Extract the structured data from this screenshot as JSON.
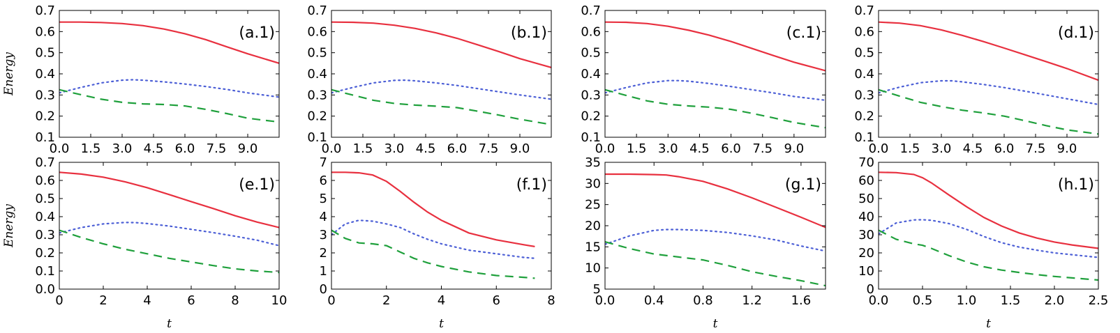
{
  "chart_data": {
    "type": "line",
    "ylabel": "Energy",
    "xlabel": "t",
    "colors": {
      "solid": "#e8303f",
      "dotted": "#4c5fd6",
      "dashed": "#1fa03c"
    },
    "series_styles": [
      {
        "name": "solid",
        "style": "solid"
      },
      {
        "name": "dotted",
        "style": "dotted"
      },
      {
        "name": "dashed",
        "style": "dashed"
      }
    ],
    "panels": [
      {
        "label": "(a.1)",
        "xlim": [
          0,
          10.5
        ],
        "ylim": [
          0.1,
          0.7
        ],
        "xticks": [
          "0.0",
          "1.5",
          "3.0",
          "4.5",
          "6.0",
          "7.5",
          "9.0"
        ],
        "yticks": [
          "0.1",
          "0.2",
          "0.3",
          "0.4",
          "0.5",
          "0.6",
          "0.7"
        ],
        "show_xlabel": false,
        "show_ylabel": true,
        "series": [
          {
            "name": "solid",
            "x": [
              0,
              1,
              2,
              3,
              4,
              5,
              6,
              7,
              8,
              9,
              10.5
            ],
            "values": [
              0.645,
              0.645,
              0.643,
              0.638,
              0.628,
              0.612,
              0.59,
              0.562,
              0.528,
              0.495,
              0.45
            ]
          },
          {
            "name": "dotted",
            "x": [
              0,
              1,
              2,
              3,
              3.5,
              4,
              5,
              6,
              7,
              8,
              9,
              10.5
            ],
            "values": [
              0.31,
              0.335,
              0.357,
              0.37,
              0.372,
              0.37,
              0.362,
              0.352,
              0.34,
              0.326,
              0.31,
              0.29
            ]
          },
          {
            "name": "dashed",
            "x": [
              0,
              1,
              2,
              3,
              4,
              5,
              6,
              7,
              8,
              9,
              10.5
            ],
            "values": [
              0.325,
              0.302,
              0.28,
              0.265,
              0.258,
              0.255,
              0.248,
              0.232,
              0.212,
              0.19,
              0.172
            ]
          }
        ]
      },
      {
        "label": "(b.1)",
        "xlim": [
          0,
          10.5
        ],
        "ylim": [
          0.1,
          0.7
        ],
        "xticks": [
          "0.0",
          "1.5",
          "3.0",
          "4.5",
          "6.0",
          "7.5",
          "9.0"
        ],
        "yticks": [
          "0.1",
          "0.2",
          "0.3",
          "0.4",
          "0.5",
          "0.6",
          "0.7"
        ],
        "show_xlabel": false,
        "show_ylabel": false,
        "series": [
          {
            "name": "solid",
            "x": [
              0,
              1,
              2,
              3,
              4,
              5,
              6,
              7,
              8,
              9,
              10.5
            ],
            "values": [
              0.645,
              0.644,
              0.64,
              0.63,
              0.615,
              0.594,
              0.568,
              0.537,
              0.505,
              0.472,
              0.43
            ]
          },
          {
            "name": "dotted",
            "x": [
              0,
              1,
              2,
              3,
              3.5,
              4,
              5,
              6,
              7,
              8,
              9,
              10.5
            ],
            "values": [
              0.31,
              0.335,
              0.357,
              0.369,
              0.37,
              0.367,
              0.357,
              0.345,
              0.33,
              0.315,
              0.3,
              0.28
            ]
          },
          {
            "name": "dashed",
            "x": [
              0,
              1,
              2,
              3,
              4,
              5,
              6,
              7,
              8,
              9,
              10.5
            ],
            "values": [
              0.325,
              0.3,
              0.275,
              0.26,
              0.252,
              0.247,
              0.24,
              0.223,
              0.205,
              0.185,
              0.16
            ]
          }
        ]
      },
      {
        "label": "(c.1)",
        "xlim": [
          0,
          10.5
        ],
        "ylim": [
          0.1,
          0.7
        ],
        "xticks": [
          "0.0",
          "1.5",
          "3.0",
          "4.5",
          "6.0",
          "7.5",
          "9.0"
        ],
        "yticks": [
          "0.1",
          "0.2",
          "0.3",
          "0.4",
          "0.5",
          "0.6",
          "0.7"
        ],
        "show_xlabel": false,
        "show_ylabel": false,
        "series": [
          {
            "name": "solid",
            "x": [
              0,
              1,
              2,
              3,
              4,
              5,
              6,
              7,
              8,
              9,
              10.5
            ],
            "values": [
              0.645,
              0.644,
              0.638,
              0.625,
              0.606,
              0.582,
              0.553,
              0.52,
              0.487,
              0.455,
              0.415
            ]
          },
          {
            "name": "dotted",
            "x": [
              0,
              1,
              2,
              3,
              3.5,
              4,
              5,
              6,
              7,
              8,
              9,
              10.5
            ],
            "values": [
              0.31,
              0.335,
              0.357,
              0.368,
              0.368,
              0.365,
              0.354,
              0.34,
              0.325,
              0.31,
              0.293,
              0.275
            ]
          },
          {
            "name": "dashed",
            "x": [
              0,
              1,
              2,
              3,
              4,
              5,
              6,
              7,
              8,
              9,
              10.5
            ],
            "values": [
              0.325,
              0.298,
              0.272,
              0.256,
              0.248,
              0.242,
              0.232,
              0.213,
              0.192,
              0.17,
              0.145
            ]
          }
        ]
      },
      {
        "label": "(d.1)",
        "xlim": [
          0,
          10.5
        ],
        "ylim": [
          0.1,
          0.7
        ],
        "xticks": [
          "0.0",
          "1.5",
          "3.0",
          "4.5",
          "6.0",
          "7.5",
          "9.0"
        ],
        "yticks": [
          "0.1",
          "0.2",
          "0.3",
          "0.4",
          "0.5",
          "0.6",
          "0.7"
        ],
        "show_xlabel": false,
        "show_ylabel": false,
        "series": [
          {
            "name": "solid",
            "x": [
              0,
              1,
              2,
              3,
              4,
              5,
              6,
              7,
              8,
              9,
              10.5
            ],
            "values": [
              0.645,
              0.64,
              0.628,
              0.608,
              0.582,
              0.553,
              0.522,
              0.49,
              0.458,
              0.425,
              0.37
            ]
          },
          {
            "name": "dotted",
            "x": [
              0,
              1,
              2,
              3,
              3.5,
              4,
              5,
              6,
              7,
              8,
              9,
              10.5
            ],
            "values": [
              0.31,
              0.337,
              0.358,
              0.367,
              0.367,
              0.362,
              0.35,
              0.335,
              0.318,
              0.3,
              0.282,
              0.255
            ]
          },
          {
            "name": "dashed",
            "x": [
              0,
              1,
              2,
              3,
              4,
              5,
              6,
              7,
              8,
              9,
              10.5
            ],
            "values": [
              0.325,
              0.295,
              0.265,
              0.245,
              0.228,
              0.215,
              0.2,
              0.178,
              0.155,
              0.135,
              0.115
            ]
          }
        ]
      },
      {
        "label": "(e.1)",
        "xlim": [
          0,
          10
        ],
        "ylim": [
          0.0,
          0.7
        ],
        "xticks": [
          "0",
          "2",
          "4",
          "6",
          "8",
          "10"
        ],
        "yticks": [
          "0.0",
          "0.1",
          "0.2",
          "0.3",
          "0.4",
          "0.5",
          "0.6",
          "0.7"
        ],
        "show_xlabel": true,
        "show_ylabel": true,
        "series": [
          {
            "name": "solid",
            "x": [
              0,
              1,
              2,
              3,
              4,
              5,
              6,
              7,
              8,
              9,
              10
            ],
            "values": [
              0.645,
              0.635,
              0.618,
              0.592,
              0.56,
              0.522,
              0.483,
              0.445,
              0.405,
              0.37,
              0.34
            ]
          },
          {
            "name": "dotted",
            "x": [
              0,
              1,
              2,
              3,
              3.5,
              4,
              5,
              6,
              7,
              8,
              9,
              10
            ],
            "values": [
              0.31,
              0.34,
              0.36,
              0.368,
              0.367,
              0.362,
              0.348,
              0.33,
              0.312,
              0.292,
              0.27,
              0.24
            ]
          },
          {
            "name": "dashed",
            "x": [
              0,
              1,
              2,
              3,
              4,
              5,
              6,
              7,
              8,
              9,
              10
            ],
            "values": [
              0.325,
              0.285,
              0.25,
              0.22,
              0.195,
              0.17,
              0.15,
              0.13,
              0.112,
              0.1,
              0.092
            ]
          }
        ]
      },
      {
        "label": "(f.1)",
        "xlim": [
          0,
          8
        ],
        "ylim": [
          0,
          7
        ],
        "xticks": [
          "0",
          "2",
          "4",
          "6",
          "8"
        ],
        "yticks": [
          "0",
          "1",
          "2",
          "3",
          "4",
          "5",
          "6",
          "7"
        ],
        "show_xlabel": true,
        "show_ylabel": false,
        "series": [
          {
            "name": "solid",
            "x": [
              0,
              0.5,
              1,
              1.5,
              2,
              2.5,
              3,
              3.5,
              4,
              5,
              6,
              7,
              7.4
            ],
            "values": [
              6.45,
              6.45,
              6.42,
              6.3,
              5.95,
              5.4,
              4.8,
              4.25,
              3.8,
              3.1,
              2.72,
              2.45,
              2.35
            ]
          },
          {
            "name": "dotted",
            "x": [
              0,
              0.5,
              1,
              1.5,
              2,
              2.5,
              3,
              3.5,
              4,
              5,
              6,
              7,
              7.4
            ],
            "values": [
              3.0,
              3.6,
              3.8,
              3.75,
              3.6,
              3.4,
              3.05,
              2.75,
              2.5,
              2.15,
              1.95,
              1.75,
              1.7
            ]
          },
          {
            "name": "dashed",
            "x": [
              0,
              0.5,
              1,
              1.5,
              2,
              2.5,
              3,
              3.5,
              4,
              5,
              6,
              7,
              7.4
            ],
            "values": [
              3.25,
              2.8,
              2.55,
              2.5,
              2.4,
              2.05,
              1.7,
              1.45,
              1.25,
              0.95,
              0.75,
              0.65,
              0.6
            ]
          }
        ]
      },
      {
        "label": "(g.1)",
        "xlim": [
          0,
          1.8
        ],
        "ylim": [
          5,
          35
        ],
        "xticks": [
          "0.0",
          "0.4",
          "0.8",
          "1.2",
          "1.6"
        ],
        "yticks": [
          "5",
          "10",
          "15",
          "20",
          "25",
          "30",
          "35"
        ],
        "show_xlabel": true,
        "show_ylabel": false,
        "series": [
          {
            "name": "solid",
            "x": [
              0,
              0.2,
              0.4,
              0.5,
              0.6,
              0.8,
              1.0,
              1.2,
              1.4,
              1.6,
              1.8
            ],
            "values": [
              32.2,
              32.2,
              32.1,
              32.0,
              31.6,
              30.5,
              28.7,
              26.6,
              24.3,
              22.0,
              19.6
            ]
          },
          {
            "name": "dotted",
            "x": [
              0,
              0.2,
              0.4,
              0.5,
              0.6,
              0.8,
              1.0,
              1.2,
              1.4,
              1.6,
              1.8
            ],
            "values": [
              15.6,
              17.6,
              18.9,
              19.1,
              19.1,
              18.9,
              18.4,
              17.6,
              16.6,
              15.2,
              14.0
            ]
          },
          {
            "name": "dashed",
            "x": [
              0,
              0.2,
              0.4,
              0.6,
              0.8,
              1.0,
              1.2,
              1.4,
              1.6,
              1.8
            ],
            "values": [
              16.2,
              14.6,
              13.3,
              12.6,
              11.9,
              10.6,
              9.1,
              8.0,
              7.0,
              5.8
            ]
          }
        ]
      },
      {
        "label": "(h.1)",
        "xlim": [
          0,
          2.5
        ],
        "ylim": [
          0,
          70
        ],
        "xticks": [
          "0.0",
          "0.5",
          "1.0",
          "1.5",
          "2.0",
          "2.5"
        ],
        "yticks": [
          "0",
          "10",
          "20",
          "30",
          "40",
          "50",
          "60",
          "70"
        ],
        "show_xlabel": true,
        "show_ylabel": false,
        "series": [
          {
            "name": "solid",
            "x": [
              0,
              0.2,
              0.4,
              0.5,
              0.6,
              0.8,
              1.0,
              1.2,
              1.4,
              1.6,
              1.8,
              2.0,
              2.2,
              2.5
            ],
            "values": [
              64.5,
              64.3,
              63.3,
              61.5,
              58.7,
              52.0,
              45.5,
              39.5,
              34.8,
              31.0,
              28.2,
              26.0,
              24.4,
              22.5
            ]
          },
          {
            "name": "dotted",
            "x": [
              0,
              0.2,
              0.4,
              0.5,
              0.6,
              0.8,
              1.0,
              1.2,
              1.4,
              1.6,
              1.8,
              2.0,
              2.2,
              2.5
            ],
            "values": [
              30.5,
              36.5,
              38.2,
              38.3,
              38.0,
              36.2,
              33.0,
              29.0,
              25.6,
              23.2,
              21.5,
              20.0,
              19.0,
              17.5
            ]
          },
          {
            "name": "dashed",
            "x": [
              0,
              0.2,
              0.4,
              0.5,
              0.6,
              0.8,
              1.0,
              1.2,
              1.4,
              1.6,
              1.8,
              2.0,
              2.2,
              2.5
            ],
            "values": [
              32.5,
              27.5,
              25.0,
              24.2,
              22.5,
              18.5,
              15.0,
              12.3,
              10.5,
              9.2,
              8.0,
              7.0,
              6.2,
              5.0
            ]
          }
        ]
      }
    ]
  }
}
